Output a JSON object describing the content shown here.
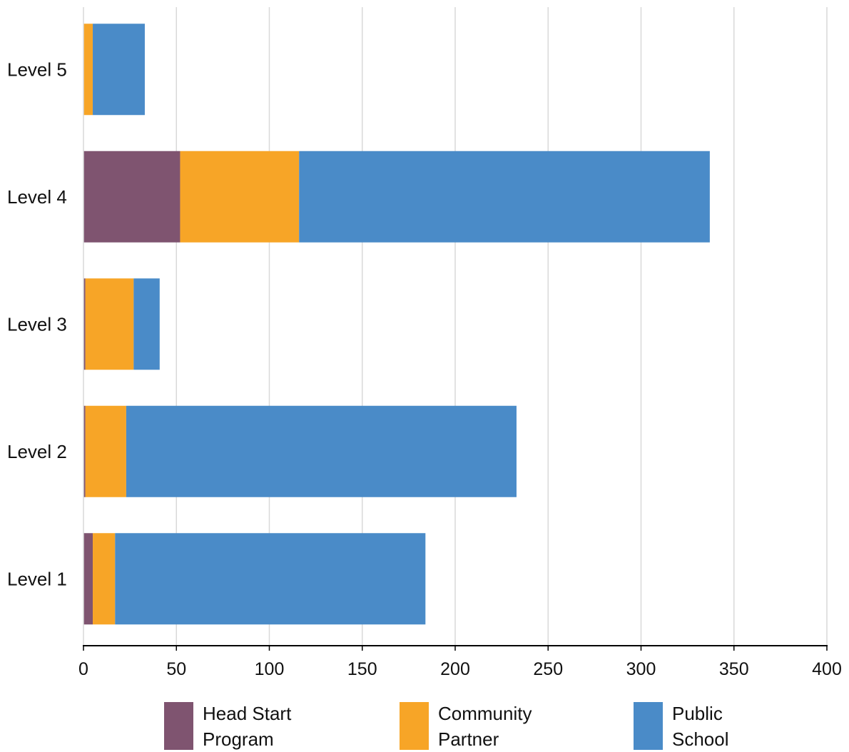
{
  "chart_data": {
    "type": "bar",
    "orientation": "horizontal",
    "stacked": true,
    "categories": [
      "Level 5",
      "Level 4",
      "Level 3",
      "Level 2",
      "Level 1"
    ],
    "series": [
      {
        "name": "Head Start Program",
        "color": "#7f5470",
        "values": [
          0,
          52,
          1,
          1,
          5
        ]
      },
      {
        "name": "Community Partner",
        "color": "#f7a527",
        "values": [
          5,
          64,
          26,
          22,
          12
        ]
      },
      {
        "name": "Public School",
        "color": "#4a8bc8",
        "values": [
          28,
          221,
          14,
          210,
          167
        ]
      }
    ],
    "xlim": [
      0,
      400
    ],
    "xticks": [
      0,
      50,
      100,
      150,
      200,
      250,
      300,
      350,
      400
    ],
    "grid": true,
    "legend_position": "bottom",
    "title": "",
    "xlabel": "",
    "ylabel": ""
  },
  "legend": {
    "items": [
      {
        "label": "Head Start\nProgram",
        "color": "#7f5470"
      },
      {
        "label": "Community\nPartner",
        "color": "#f7a527"
      },
      {
        "label": "Public\nSchool",
        "color": "#4a8bc8"
      }
    ]
  }
}
